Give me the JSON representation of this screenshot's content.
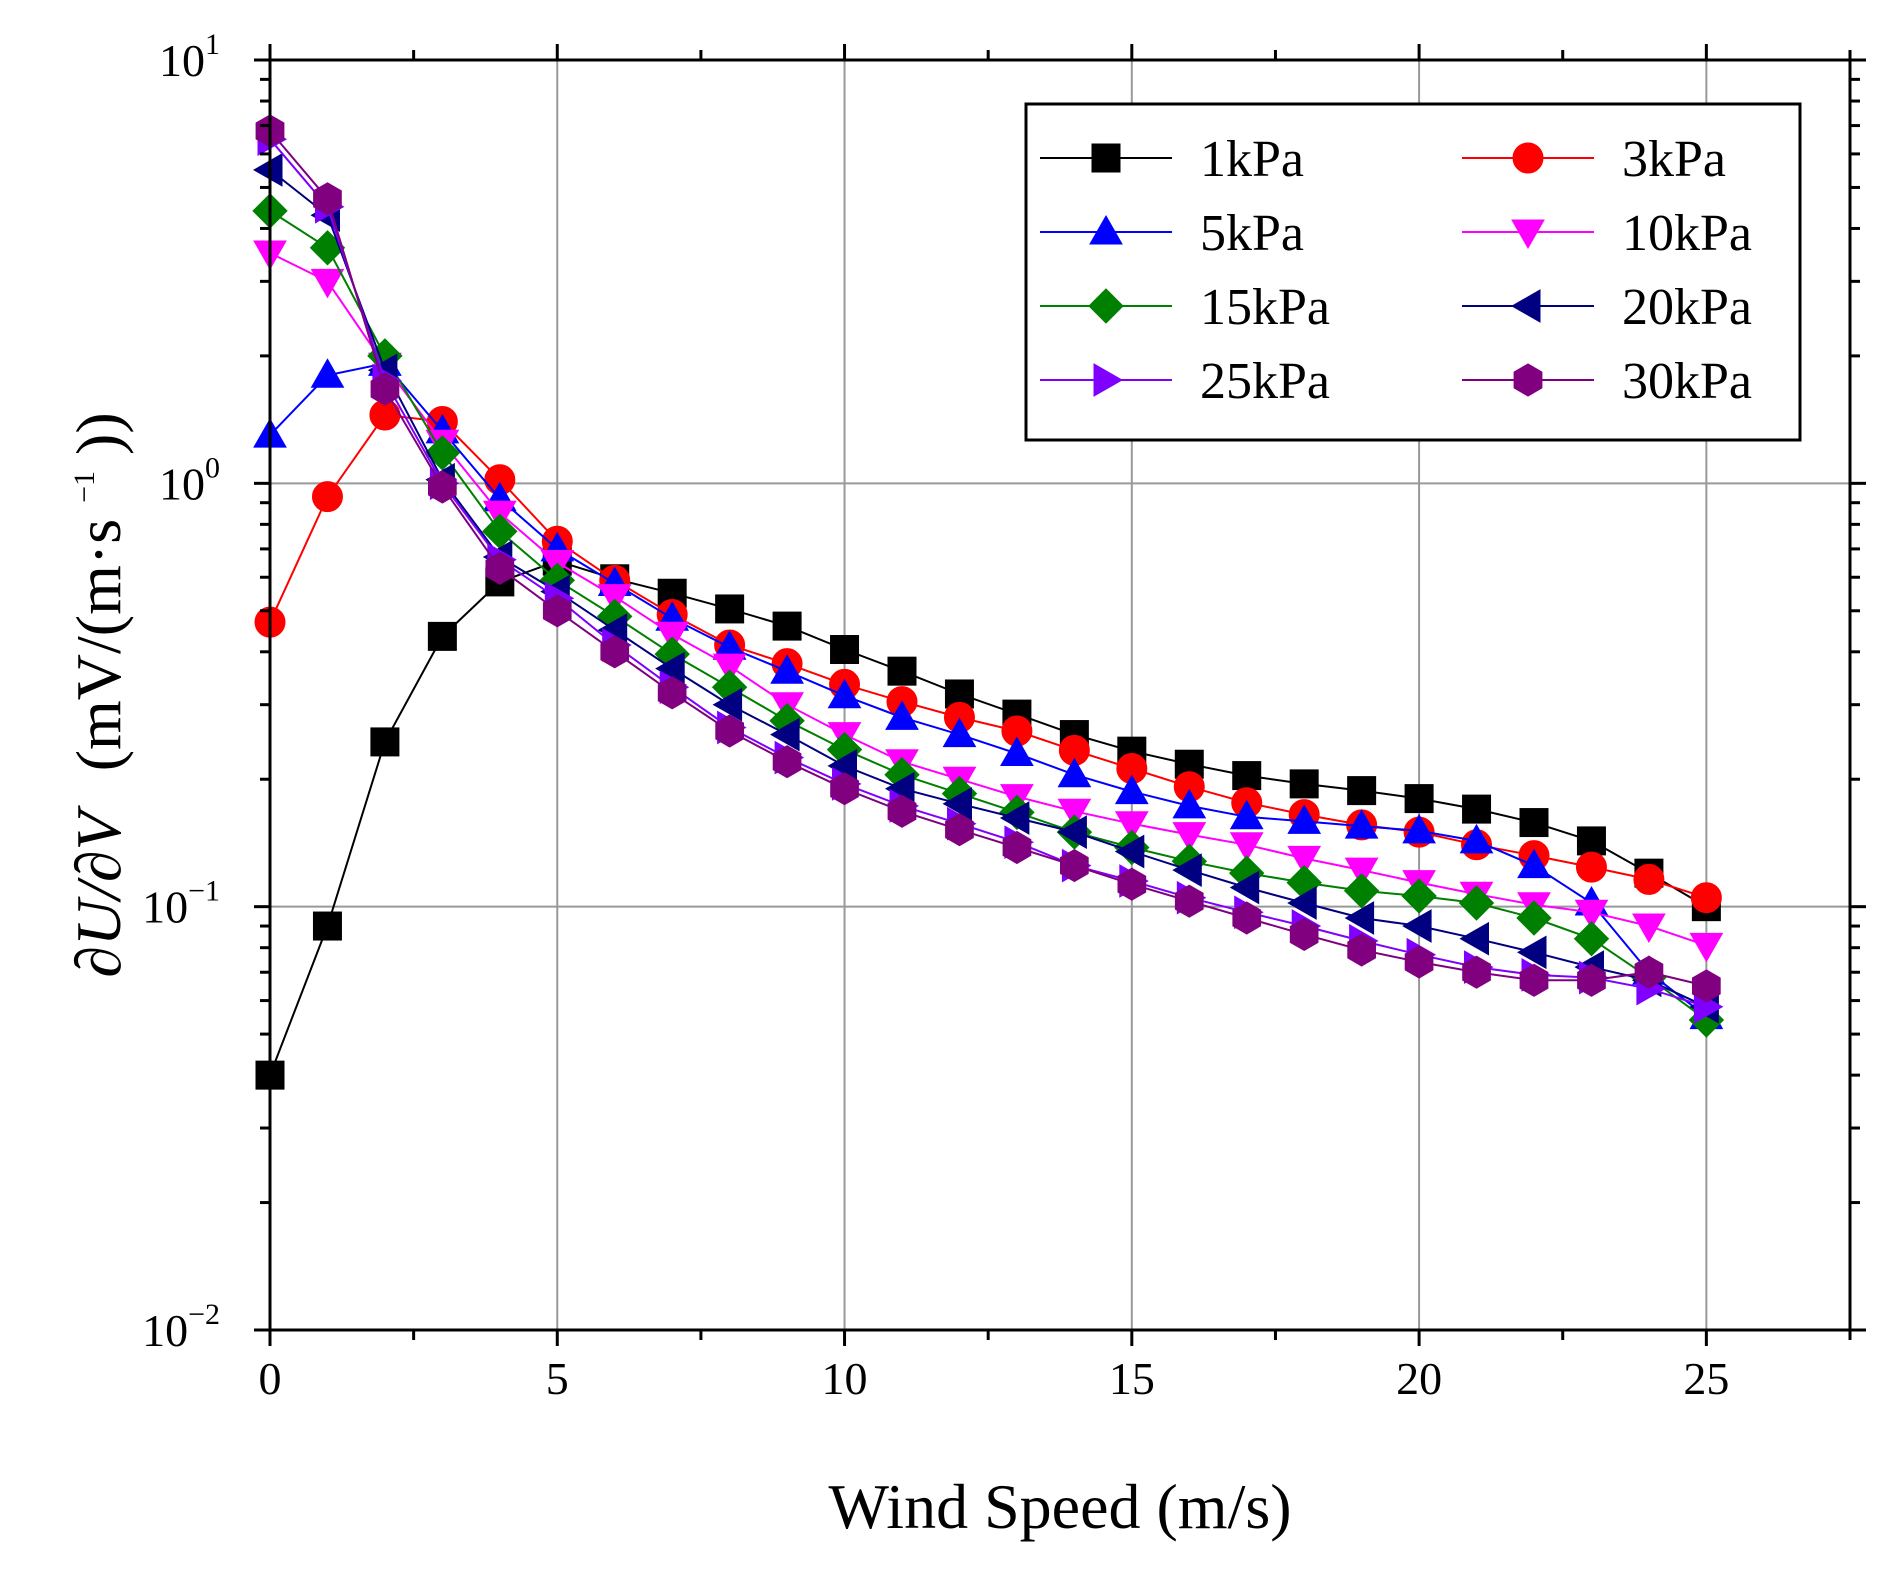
{
  "chart_data": {
    "type": "line",
    "title": "",
    "xlabel": "Wind Speed (m/s)",
    "ylabel": {
      "prefix": "∂U/∂V",
      "units_open": "(mV/(m·s",
      "units_exp": "−1",
      "units_close": "))"
    },
    "xlim": [
      0,
      27.5
    ],
    "ylim": [
      0.01,
      10
    ],
    "yscale": "log",
    "grid": true,
    "legend_position": "top-right",
    "x_ticks": [
      {
        "value": 0,
        "label": "0"
      },
      {
        "value": 5,
        "label": "5"
      },
      {
        "value": 10,
        "label": "10"
      },
      {
        "value": 15,
        "label": "15"
      },
      {
        "value": 20,
        "label": "20"
      },
      {
        "value": 25,
        "label": "25"
      }
    ],
    "y_ticks": [
      {
        "value": 10,
        "base": "10",
        "exp": "1"
      },
      {
        "value": 1,
        "base": "10",
        "exp": "0"
      },
      {
        "value": 0.1,
        "base": "10",
        "exp": "−1"
      },
      {
        "value": 0.01,
        "base": "10",
        "exp": "−2"
      }
    ],
    "x": [
      0,
      1,
      2,
      3,
      4,
      5,
      6,
      7,
      8,
      9,
      10,
      11,
      12,
      13,
      14,
      15,
      16,
      17,
      18,
      19,
      20,
      21,
      22,
      23,
      24,
      25
    ],
    "series": [
      {
        "name": "1kPa",
        "color": "#000000",
        "marker": "square",
        "values": [
          0.04,
          0.09,
          0.245,
          0.435,
          0.585,
          0.655,
          0.595,
          0.55,
          0.505,
          0.46,
          0.405,
          0.36,
          0.318,
          0.285,
          0.255,
          0.233,
          0.217,
          0.204,
          0.195,
          0.188,
          0.18,
          0.17,
          0.158,
          0.143,
          0.12,
          0.1
        ]
      },
      {
        "name": "3kPa",
        "color": "#ff0000",
        "marker": "circle",
        "values": [
          0.47,
          0.93,
          1.45,
          1.4,
          1.02,
          0.73,
          0.59,
          0.49,
          0.415,
          0.375,
          0.335,
          0.305,
          0.28,
          0.26,
          0.234,
          0.212,
          0.192,
          0.176,
          0.165,
          0.156,
          0.15,
          0.14,
          0.132,
          0.124,
          0.116,
          0.105
        ]
      },
      {
        "name": "5kPa",
        "color": "#0000ff",
        "marker": "triangle-up",
        "values": [
          1.3,
          1.8,
          1.92,
          1.33,
          0.92,
          0.7,
          0.58,
          0.48,
          0.41,
          0.36,
          0.315,
          0.28,
          0.255,
          0.23,
          0.205,
          0.187,
          0.173,
          0.163,
          0.159,
          0.155,
          0.151,
          0.143,
          0.125,
          0.102,
          0.07,
          0.055
        ]
      },
      {
        "name": "10kPa",
        "color": "#ff00ff",
        "marker": "triangle-down",
        "values": [
          3.5,
          3.0,
          1.9,
          1.25,
          0.85,
          0.65,
          0.54,
          0.44,
          0.37,
          0.3,
          0.255,
          0.22,
          0.2,
          0.182,
          0.168,
          0.157,
          0.148,
          0.14,
          0.13,
          0.122,
          0.114,
          0.107,
          0.101,
          0.097,
          0.09,
          0.081
        ]
      },
      {
        "name": "15kPa",
        "color": "#008000",
        "marker": "diamond",
        "values": [
          4.4,
          3.6,
          2.0,
          1.18,
          0.77,
          0.59,
          0.485,
          0.395,
          0.33,
          0.275,
          0.235,
          0.205,
          0.185,
          0.167,
          0.15,
          0.138,
          0.128,
          0.12,
          0.114,
          0.109,
          0.106,
          0.102,
          0.094,
          0.084,
          0.068,
          0.054
        ]
      },
      {
        "name": "20kPa",
        "color": "#000080",
        "marker": "triangle-left",
        "values": [
          5.5,
          4.3,
          1.85,
          1.02,
          0.67,
          0.555,
          0.45,
          0.365,
          0.3,
          0.255,
          0.215,
          0.19,
          0.175,
          0.162,
          0.15,
          0.135,
          0.122,
          0.111,
          0.102,
          0.094,
          0.09,
          0.084,
          0.078,
          0.072,
          0.067,
          0.058
        ]
      },
      {
        "name": "25kPa",
        "color": "#8000ff",
        "marker": "triangle-right",
        "values": [
          6.5,
          4.5,
          1.75,
          1.0,
          0.66,
          0.535,
          0.415,
          0.33,
          0.265,
          0.225,
          0.195,
          0.173,
          0.157,
          0.142,
          0.125,
          0.115,
          0.105,
          0.097,
          0.09,
          0.083,
          0.077,
          0.072,
          0.069,
          0.068,
          0.064,
          0.058
        ]
      },
      {
        "name": "30kPa",
        "color": "#800080",
        "marker": "hexagon",
        "values": [
          6.8,
          4.7,
          1.67,
          0.98,
          0.63,
          0.5,
          0.4,
          0.32,
          0.26,
          0.22,
          0.19,
          0.168,
          0.152,
          0.138,
          0.125,
          0.113,
          0.103,
          0.094,
          0.086,
          0.079,
          0.074,
          0.07,
          0.067,
          0.067,
          0.07,
          0.065
        ]
      }
    ]
  }
}
